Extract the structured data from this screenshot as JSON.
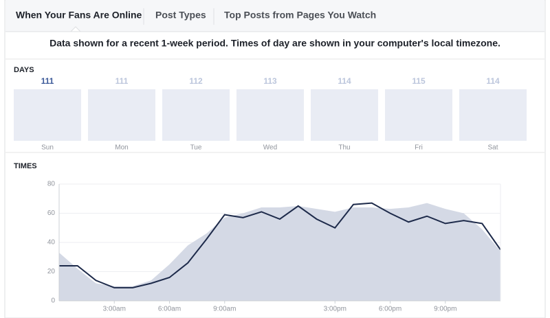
{
  "tabs": [
    "When Your Fans Are Online",
    "Post Types",
    "Top Posts from Pages You Watch"
  ],
  "notice": "Data shown for a recent 1-week period. Times of day are shown in your computer's local timezone.",
  "days": {
    "label": "DAYS",
    "items": [
      {
        "day": "Sun",
        "count": 111
      },
      {
        "day": "Mon",
        "count": 111
      },
      {
        "day": "Tue",
        "count": 112
      },
      {
        "day": "Wed",
        "count": 113
      },
      {
        "day": "Thu",
        "count": 114
      },
      {
        "day": "Fri",
        "count": 115
      },
      {
        "day": "Sat",
        "count": 114
      }
    ]
  },
  "chart_data": {
    "type": "line",
    "title": "TIMES",
    "x": [
      0,
      1,
      2,
      3,
      4,
      5,
      6,
      7,
      8,
      9,
      10,
      11,
      12,
      13,
      14,
      15,
      16,
      17,
      18,
      19,
      20,
      21,
      22,
      23,
      24
    ],
    "series": [
      {
        "color": "#d4d9e5",
        "fill": true,
        "values": [
          33,
          22,
          12,
          10,
          10,
          14,
          25,
          38,
          46,
          57,
          60,
          64,
          64,
          65,
          63,
          61,
          64,
          64,
          63,
          64,
          67,
          63,
          60,
          49,
          34
        ]
      },
      {
        "color": "#1d2a4a",
        "values": [
          24,
          24,
          14,
          9,
          9,
          12,
          16,
          26,
          42,
          59,
          57,
          61,
          56,
          65,
          56,
          50,
          66,
          67,
          60,
          54,
          58,
          53,
          55,
          53,
          35
        ]
      }
    ],
    "xlim": [
      0,
      24
    ],
    "xticks": [
      {
        "value": 3,
        "label": "3:00am"
      },
      {
        "value": 6,
        "label": "6:00am"
      },
      {
        "value": 9,
        "label": "9:00am"
      },
      {
        "value": 15,
        "label": "3:00pm"
      },
      {
        "value": 18,
        "label": "6:00pm"
      },
      {
        "value": 21,
        "label": "9:00pm"
      }
    ],
    "ylim": [
      0,
      80
    ],
    "yticks": [
      0,
      20,
      40,
      60,
      80
    ],
    "grid": true
  }
}
